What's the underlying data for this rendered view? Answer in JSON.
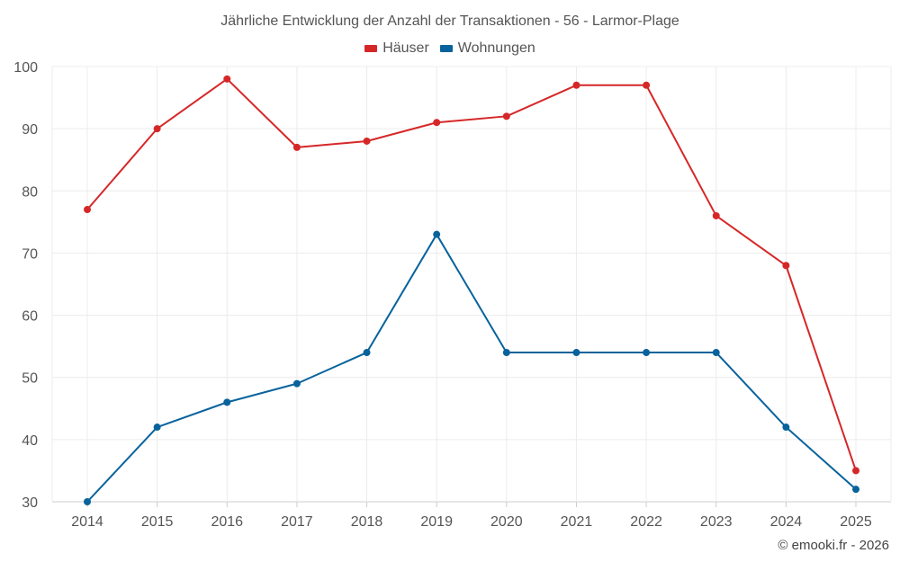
{
  "chart_data": {
    "type": "line",
    "title": "Jährliche Entwicklung der Anzahl der Transaktionen - 56 - Larmor-Plage",
    "categories": [
      "2014",
      "2015",
      "2016",
      "2017",
      "2018",
      "2019",
      "2020",
      "2021",
      "2022",
      "2023",
      "2024",
      "2025"
    ],
    "series": [
      {
        "name": "Häuser",
        "color": "#d62728",
        "values": [
          77,
          90,
          98,
          87,
          88,
          91,
          92,
          97,
          97,
          76,
          68,
          35
        ]
      },
      {
        "name": "Wohnungen",
        "color": "#08639c",
        "values": [
          30,
          42,
          46,
          49,
          54,
          73,
          54,
          54,
          54,
          54,
          42,
          32
        ]
      }
    ],
    "ylim": [
      30,
      100
    ],
    "yticks": [
      30,
      40,
      50,
      60,
      70,
      80,
      90,
      100
    ],
    "xlabel": "",
    "ylabel": "",
    "grid": true,
    "legend": "top-center"
  },
  "footer": {
    "credit": "© emooki.fr - 2026"
  }
}
